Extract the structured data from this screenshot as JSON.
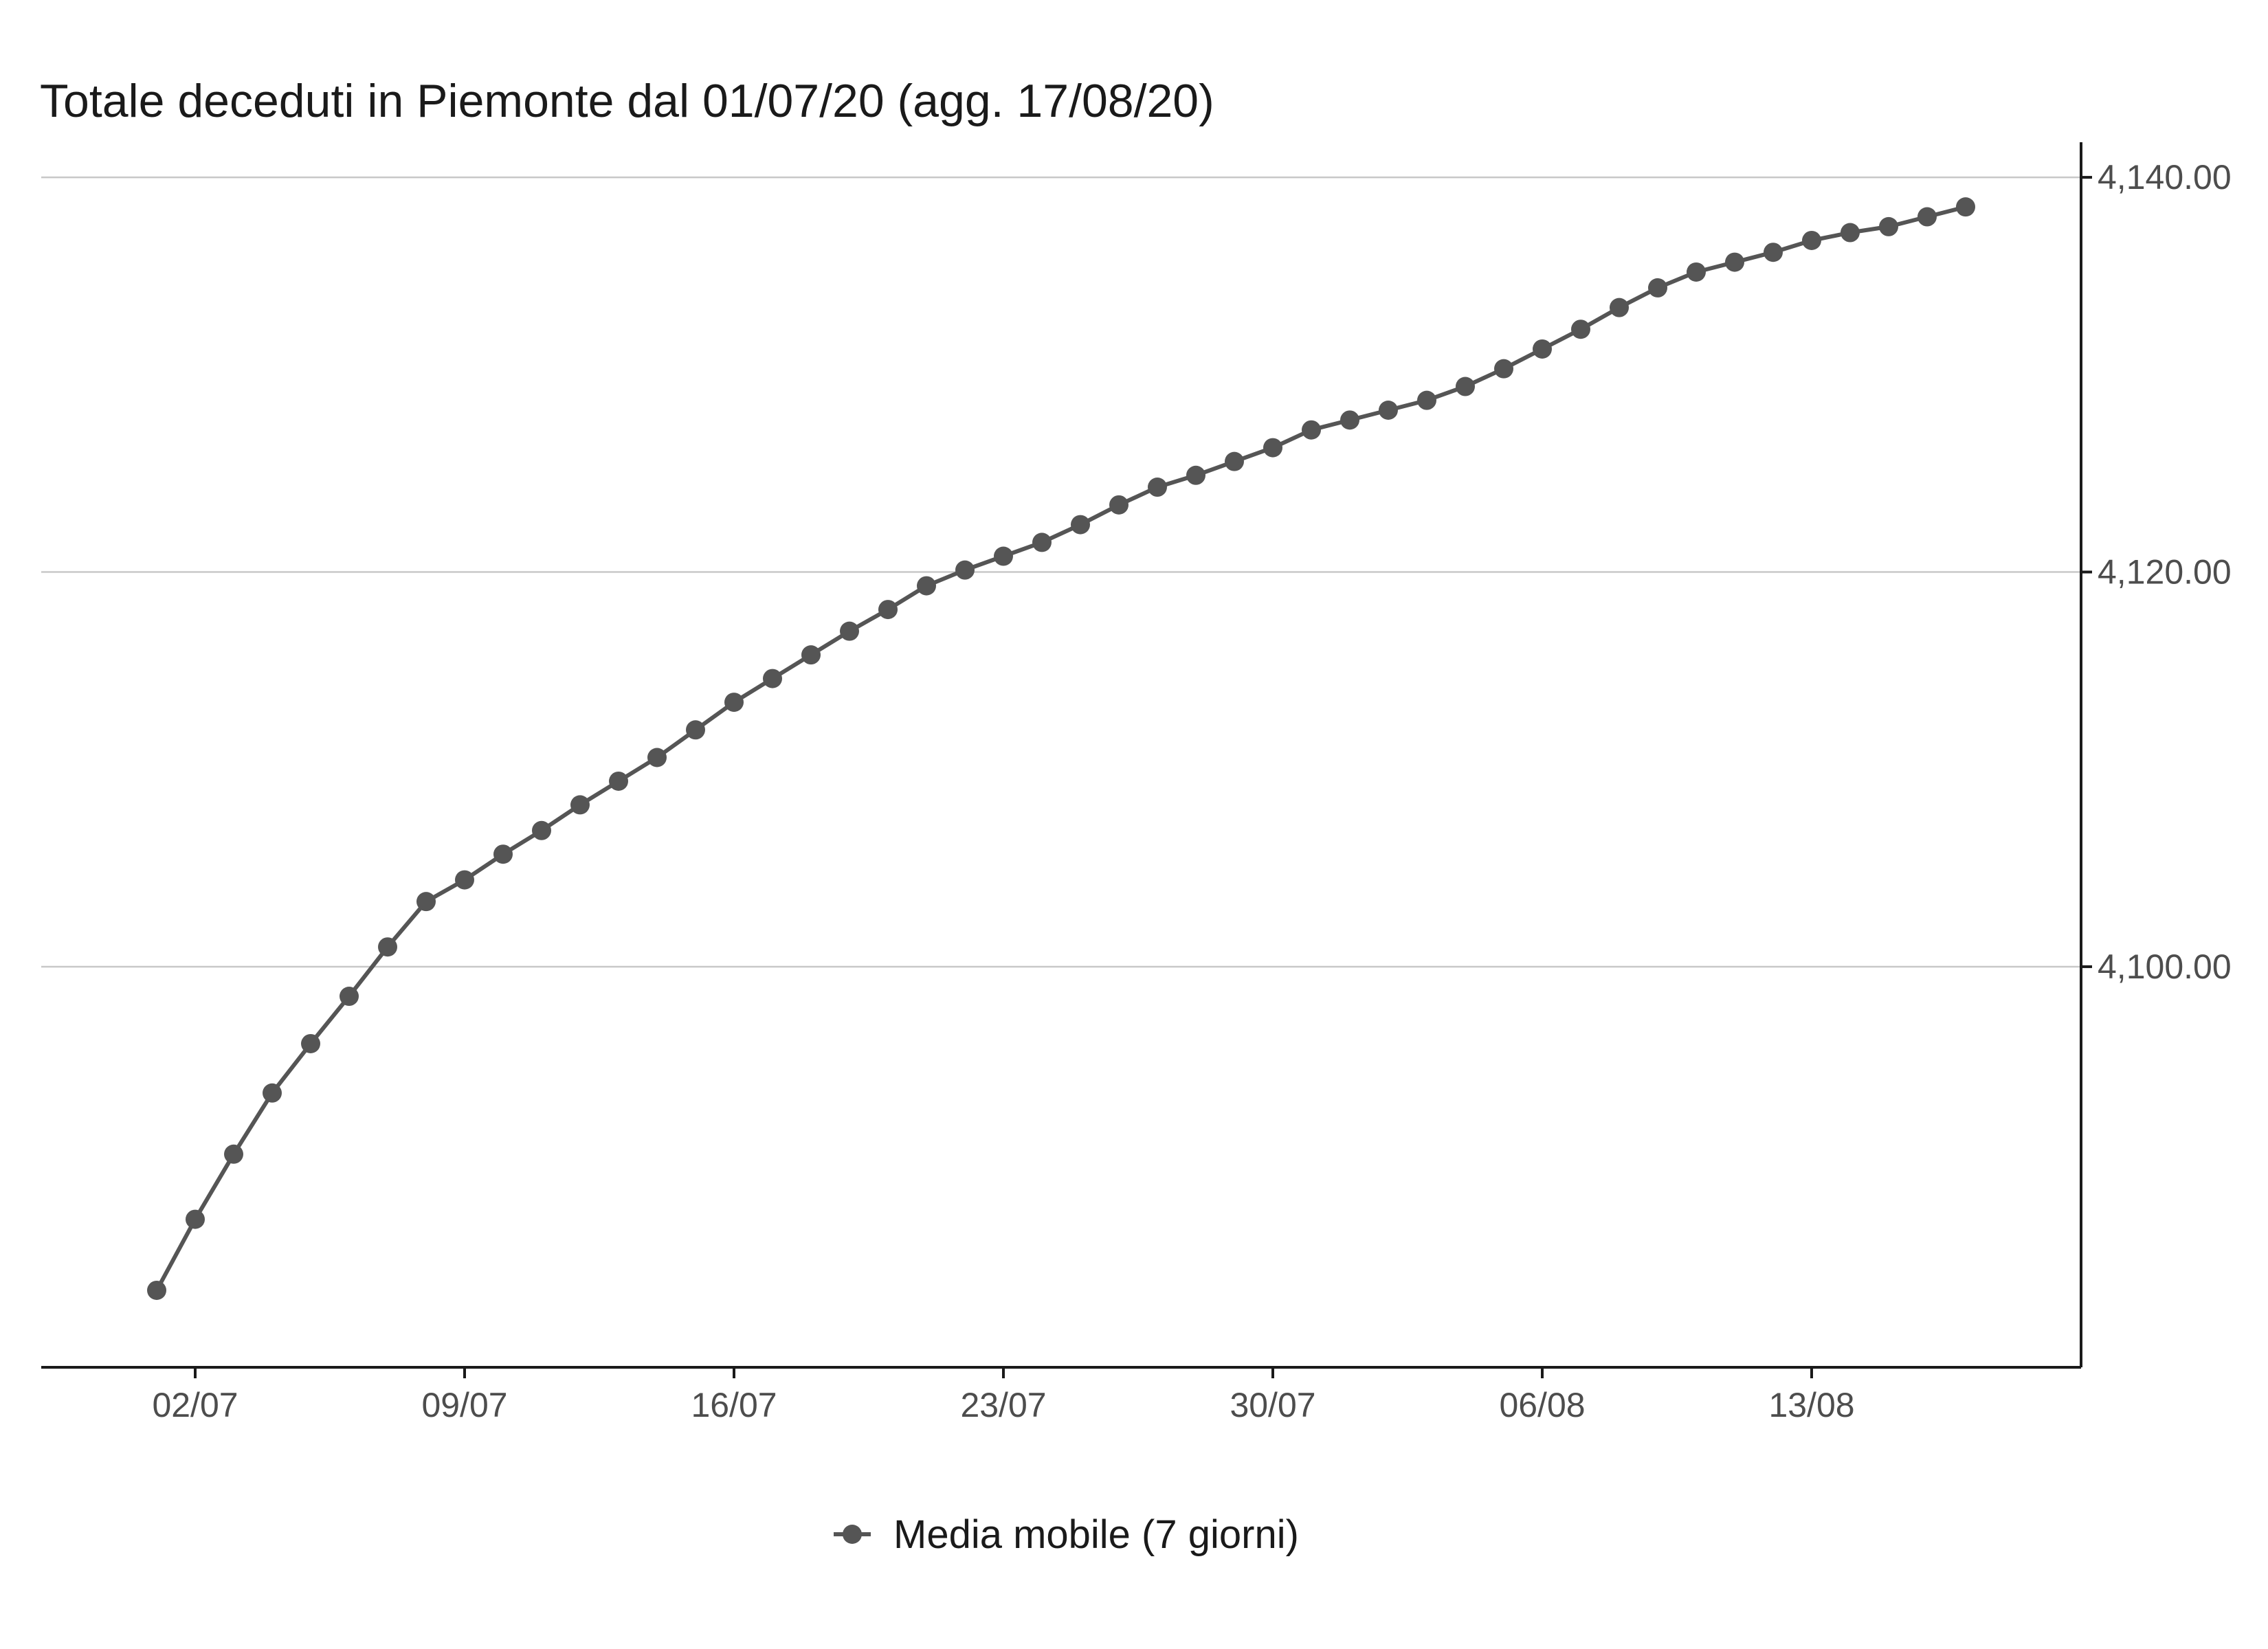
{
  "chart_data": {
    "type": "line",
    "title": "Totale deceduti in Piemonte dal 01/07/20 (agg. 17/08/20)",
    "xlabel": "",
    "ylabel": "",
    "y_axis_position": "right",
    "ylim": [
      4079.7,
      4141.5
    ],
    "y_ticks": [
      4100,
      4120,
      4140
    ],
    "y_tick_labels": [
      "4,100.00",
      "4,120.00",
      "4,140.00"
    ],
    "x_ticks": [
      "2020-07-02",
      "2020-07-09",
      "2020-07-16",
      "2020-07-23",
      "2020-07-30",
      "2020-08-06",
      "2020-08-13"
    ],
    "x_tick_labels": [
      "02/07",
      "09/07",
      "16/07",
      "23/07",
      "30/07",
      "06/08",
      "13/08"
    ],
    "xlim": [
      "2020-06-28",
      "2020-08-20"
    ],
    "grid": "horizontal",
    "legend_position": "bottom",
    "series": [
      {
        "name": "Media mobile (7 giorni)",
        "color": "#555555",
        "x": [
          "2020-07-01",
          "2020-07-02",
          "2020-07-03",
          "2020-07-04",
          "2020-07-05",
          "2020-07-06",
          "2020-07-07",
          "2020-07-08",
          "2020-07-09",
          "2020-07-10",
          "2020-07-11",
          "2020-07-12",
          "2020-07-13",
          "2020-07-14",
          "2020-07-15",
          "2020-07-16",
          "2020-07-17",
          "2020-07-18",
          "2020-07-19",
          "2020-07-20",
          "2020-07-21",
          "2020-07-22",
          "2020-07-23",
          "2020-07-24",
          "2020-07-25",
          "2020-07-26",
          "2020-07-27",
          "2020-07-28",
          "2020-07-29",
          "2020-07-30",
          "2020-07-31",
          "2020-08-01",
          "2020-08-02",
          "2020-08-03",
          "2020-08-04",
          "2020-08-05",
          "2020-08-06",
          "2020-08-07",
          "2020-08-08",
          "2020-08-09",
          "2020-08-10",
          "2020-08-11",
          "2020-08-12",
          "2020-08-13",
          "2020-08-14",
          "2020-08-15",
          "2020-08-16",
          "2020-08-17"
        ],
        "values": [
          4083.6,
          4087.2,
          4090.5,
          4093.6,
          4096.1,
          4098.5,
          4101.0,
          4103.3,
          4104.4,
          4105.7,
          4106.9,
          4108.2,
          4109.4,
          4110.6,
          4112.0,
          4113.4,
          4114.6,
          4115.8,
          4117.0,
          4118.1,
          4119.3,
          4120.1,
          4120.8,
          4121.5,
          4122.4,
          4123.4,
          4124.3,
          4124.9,
          4125.6,
          4126.3,
          4127.2,
          4127.7,
          4128.2,
          4128.7,
          4129.4,
          4130.3,
          4131.3,
          4132.3,
          4133.4,
          4134.4,
          4135.2,
          4135.7,
          4136.2,
          4136.8,
          4137.2,
          4137.5,
          4138.0,
          4138.5
        ]
      }
    ]
  }
}
